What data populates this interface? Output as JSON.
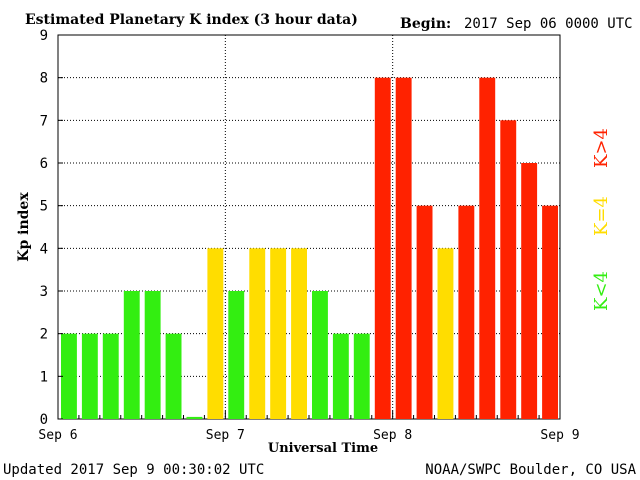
{
  "header": {
    "title": "Estimated Planetary K index (3 hour data)",
    "begin_label": "Begin:",
    "begin_value": "2017 Sep 06 0000 UTC"
  },
  "footer": {
    "updated": "Updated 2017 Sep  9 00:30:02 UTC",
    "source": "NOAA/SWPC Boulder, CO USA"
  },
  "chart_data": {
    "type": "bar",
    "title": "Estimated Planetary K index (3 hour data)",
    "xlabel": "Universal Time",
    "ylabel": "Kp index",
    "ylim": [
      0,
      9
    ],
    "y_ticks": [
      "0",
      "1",
      "2",
      "3",
      "4",
      "5",
      "6",
      "7",
      "8",
      "9"
    ],
    "x_ticks": [
      "Sep 6",
      "Sep 7",
      "Sep 8",
      "Sep 9"
    ],
    "grid": "dotted vertical at day boundaries, dotted horizontal at each integer",
    "values": [
      2,
      2,
      2,
      3,
      3,
      2,
      0.05,
      4,
      3,
      4,
      4,
      4,
      3,
      2,
      2,
      8,
      8,
      5,
      4,
      5,
      8,
      7,
      6,
      5
    ],
    "legend": [
      {
        "label": "K<4",
        "color": "#33ee11"
      },
      {
        "label": "K=4",
        "color": "#ffdd00"
      },
      {
        "label": "K>4",
        "color": "#ff2200"
      }
    ],
    "legend_placement": "right, vertical",
    "colors": {
      "low": "#33ee11",
      "equal": "#ffdd00",
      "high": "#ff2200"
    }
  }
}
